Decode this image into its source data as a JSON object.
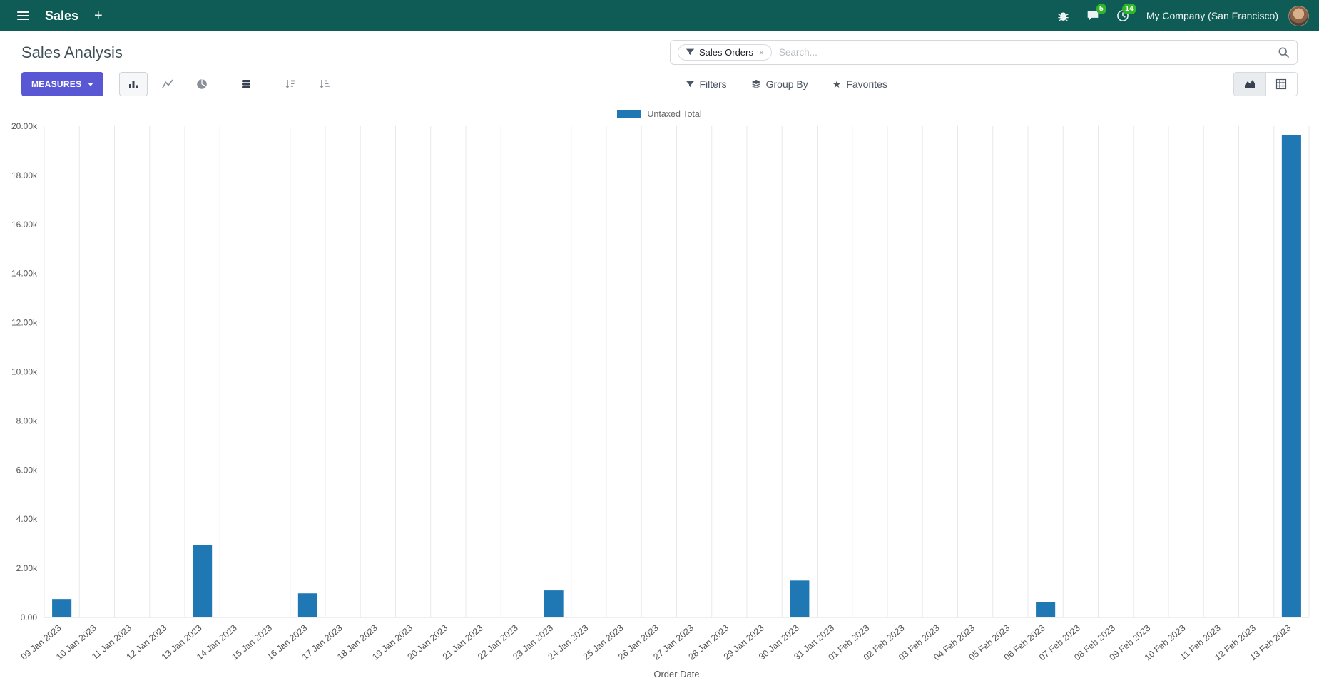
{
  "navbar": {
    "app_name": "Sales",
    "plus": "+",
    "messages_badge": "5",
    "activities_badge": "14",
    "company": "My Company (San Francisco)"
  },
  "control_panel": {
    "title": "Sales Analysis",
    "measures_label": "MEASURES",
    "filters_label": "Filters",
    "group_by_label": "Group By",
    "favorites_label": "Favorites",
    "search": {
      "facet": "Sales Orders",
      "facet_remove": "×",
      "placeholder": "Search..."
    }
  },
  "colors": {
    "navbar_bg": "#0e5c55",
    "primary": "#5a57d4",
    "badge": "#2fb52a",
    "bar": "#1f77b4",
    "grid": "#e8e8e8"
  },
  "chart_data": {
    "type": "bar",
    "title": "",
    "legend": "Untaxed Total",
    "xlabel": "Order Date",
    "ylabel": "",
    "ylim": [
      0,
      20000
    ],
    "grid": "vertical",
    "legend_position": "top-center",
    "y_ticks": [
      0,
      2000,
      4000,
      6000,
      8000,
      10000,
      12000,
      14000,
      16000,
      18000,
      20000
    ],
    "y_tick_labels": [
      "0.00",
      "2.00k",
      "4.00k",
      "6.00k",
      "8.00k",
      "10.00k",
      "12.00k",
      "14.00k",
      "16.00k",
      "18.00k",
      "20.00k"
    ],
    "categories": [
      "09 Jan 2023",
      "10 Jan 2023",
      "11 Jan 2023",
      "12 Jan 2023",
      "13 Jan 2023",
      "14 Jan 2023",
      "15 Jan 2023",
      "16 Jan 2023",
      "17 Jan 2023",
      "18 Jan 2023",
      "19 Jan 2023",
      "20 Jan 2023",
      "21 Jan 2023",
      "22 Jan 2023",
      "23 Jan 2023",
      "24 Jan 2023",
      "25 Jan 2023",
      "26 Jan 2023",
      "27 Jan 2023",
      "28 Jan 2023",
      "29 Jan 2023",
      "30 Jan 2023",
      "31 Jan 2023",
      "01 Feb 2023",
      "02 Feb 2023",
      "03 Feb 2023",
      "04 Feb 2023",
      "05 Feb 2023",
      "06 Feb 2023",
      "07 Feb 2023",
      "08 Feb 2023",
      "09 Feb 2023",
      "10 Feb 2023",
      "11 Feb 2023",
      "12 Feb 2023",
      "13 Feb 2023"
    ],
    "series": [
      {
        "name": "Untaxed Total",
        "color": "#1f77b4",
        "values": [
          750,
          0,
          0,
          0,
          2950,
          0,
          0,
          980,
          0,
          0,
          0,
          0,
          0,
          0,
          1100,
          0,
          0,
          0,
          0,
          0,
          0,
          1500,
          0,
          0,
          0,
          0,
          0,
          0,
          620,
          0,
          0,
          0,
          0,
          0,
          0,
          19650
        ]
      }
    ]
  }
}
